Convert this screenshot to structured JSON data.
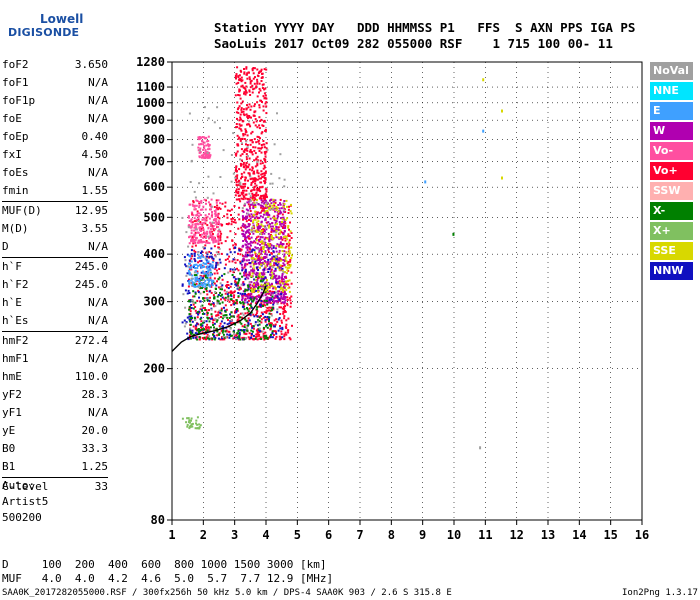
{
  "logo": {
    "line1": "Lowell",
    "line2": "DIGISONDE"
  },
  "header": {
    "line1": "Station YYYY DAY   DDD HHMMSS P1   FFS  S AXN PPS IGA PS",
    "line2": "SaoLuis 2017 Oct09 282 055000 RSF    1 715 100 00- 11"
  },
  "params": {
    "g1": [
      [
        "foF2",
        "3.650"
      ],
      [
        "foF1",
        "N/A"
      ],
      [
        "foF1p",
        "N/A"
      ],
      [
        "foE",
        "N/A"
      ],
      [
        "foEp",
        "0.40"
      ],
      [
        "fxI",
        "4.50"
      ],
      [
        "foEs",
        "N/A"
      ],
      [
        "fmin",
        "1.55"
      ]
    ],
    "g2": [
      [
        "MUF(D)",
        "12.95"
      ],
      [
        "M(D)",
        "3.55"
      ],
      [
        "D",
        "N/A"
      ]
    ],
    "g3": [
      [
        "h`F",
        "245.0"
      ],
      [
        "h`F2",
        "245.0"
      ],
      [
        "h`E",
        "N/A"
      ],
      [
        "h`Es",
        "N/A"
      ]
    ],
    "g4": [
      [
        "hmF2",
        "272.4"
      ],
      [
        "hmF1",
        "N/A"
      ],
      [
        "hmE",
        "110.0"
      ],
      [
        "yF2",
        "28.3"
      ],
      [
        "yF1",
        "N/A"
      ],
      [
        "yE",
        "20.0"
      ],
      [
        "B0",
        "33.3"
      ],
      [
        "B1",
        "1.25"
      ]
    ],
    "g5": [
      [
        "C-level",
        "33"
      ]
    ]
  },
  "auto": {
    "l1": "Auto:",
    "l2": "Artist5",
    "l3": "500200"
  },
  "footer": {
    "d_line": "D     100  200  400  600  800 1000 1500 3000 [km]",
    "muf_line": "MUF   4.0  4.0  4.2  4.6  5.0  5.7  7.7 12.9 [MHz]",
    "info_line": "SAA0K_2017282055000.RSF / 300fx256h 50 kHz 5.0 km / DPS-4 SAA0K 903 / 2.6 S 315.8 E",
    "version": "Ion2Png 1.3.17"
  },
  "legend": [
    {
      "label": "NoVal",
      "color": "#a0a0a0"
    },
    {
      "label": "NNE",
      "color": "#00e5ff"
    },
    {
      "label": "E",
      "color": "#3fa0ff"
    },
    {
      "label": "W",
      "color": "#b000b0"
    },
    {
      "label": "Vo-",
      "color": "#ff4fa0"
    },
    {
      "label": "Vo+",
      "color": "#ff0030"
    },
    {
      "label": "SSW",
      "color": "#ffb0b0"
    },
    {
      "label": "X-",
      "color": "#008000"
    },
    {
      "label": "X+",
      "color": "#80c060"
    },
    {
      "label": "SSE",
      "color": "#d8d800"
    },
    {
      "label": "NNW",
      "color": "#1010c0"
    }
  ],
  "chart_data": {
    "type": "scatter",
    "xlabel": "",
    "ylabel": "",
    "x_range": [
      1,
      16
    ],
    "y_range": [
      80,
      1280
    ],
    "x_ticks": [
      1,
      2,
      3,
      4,
      5,
      6,
      7,
      8,
      9,
      10,
      11,
      12,
      13,
      14,
      15,
      16
    ],
    "y_ticks": [
      80,
      200,
      300,
      400,
      500,
      600,
      700,
      800,
      900,
      1000,
      1100,
      1280
    ],
    "y_scale": "log",
    "grid": true,
    "trace": {
      "name": "",
      "x": [
        1.0,
        1.3,
        1.6,
        2.0,
        2.4,
        2.8,
        3.2,
        3.5,
        3.7,
        3.9,
        4.0
      ],
      "y": [
        222,
        235,
        243,
        248,
        252,
        258,
        268,
        280,
        295,
        315,
        330
      ]
    },
    "clusters": [
      {
        "color": "#ff0030",
        "fmin": 1.5,
        "fmax": 4.8,
        "hmin": 240,
        "hmax": 560,
        "n": 900
      },
      {
        "color": "#b000b0",
        "fmin": 3.2,
        "fmax": 4.6,
        "hmin": 300,
        "hmax": 560,
        "n": 600
      },
      {
        "color": "#1010c0",
        "fmin": 1.3,
        "fmax": 4.5,
        "hmin": 240,
        "hmax": 420,
        "n": 300
      },
      {
        "color": "#008000",
        "fmin": 1.5,
        "fmax": 4.2,
        "hmin": 240,
        "hmax": 360,
        "n": 250
      },
      {
        "color": "#ff4fa0",
        "fmin": 1.5,
        "fmax": 2.5,
        "hmin": 430,
        "hmax": 560,
        "n": 200
      },
      {
        "color": "#d8d800",
        "fmin": 3.5,
        "fmax": 4.8,
        "hmin": 320,
        "hmax": 560,
        "n": 200
      },
      {
        "color": "#3fa0ff",
        "fmin": 1.5,
        "fmax": 2.3,
        "hmin": 330,
        "hmax": 400,
        "n": 120
      },
      {
        "color": "#ff0030",
        "fmin": 3.0,
        "fmax": 4.0,
        "hmin": 560,
        "hmax": 1250,
        "n": 500
      },
      {
        "color": "#ff4fa0",
        "fmin": 1.8,
        "fmax": 2.2,
        "hmin": 720,
        "hmax": 820,
        "n": 80
      },
      {
        "color": "#80c060",
        "fmin": 1.3,
        "fmax": 1.9,
        "hmin": 140,
        "hmax": 150,
        "n": 30
      },
      {
        "color": "#a0a0a0",
        "fmin": 1.3,
        "fmax": 4.6,
        "hmin": 240,
        "hmax": 1000,
        "n": 150
      }
    ],
    "outliers": [
      {
        "f": 9.05,
        "h": 625,
        "color": "#3fa0ff"
      },
      {
        "f": 9.95,
        "h": 455,
        "color": "#008000"
      },
      {
        "f": 10.9,
        "h": 1160,
        "color": "#d8d800"
      },
      {
        "f": 10.9,
        "h": 850,
        "color": "#3fa0ff"
      },
      {
        "f": 11.5,
        "h": 960,
        "color": "#d8d800"
      },
      {
        "f": 11.5,
        "h": 640,
        "color": "#d8d800"
      },
      {
        "f": 10.8,
        "h": 125,
        "color": "#a0a0a0"
      }
    ]
  }
}
